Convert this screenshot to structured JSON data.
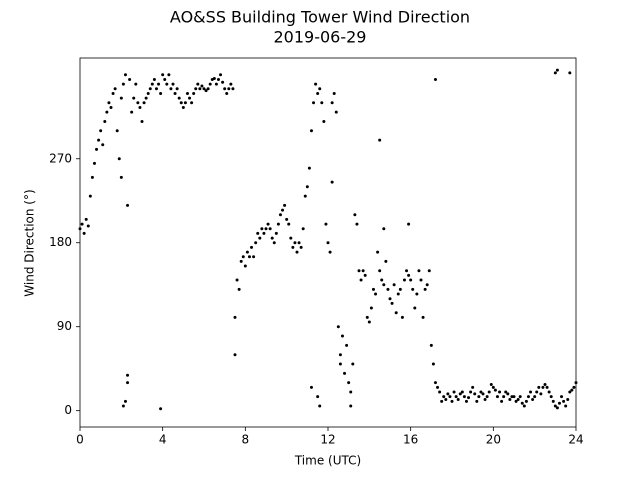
{
  "chart_data": {
    "type": "scatter",
    "title": "AO&SS Building Tower Wind Direction",
    "subtitle": "2019-06-29",
    "x_label": "Time (UTC)",
    "y_label": "Wind Direction (°)",
    "color": "#000000",
    "xlim": [
      0,
      24
    ],
    "xticks": [
      0,
      4,
      8,
      12,
      16,
      20,
      24
    ],
    "ylim": [
      -17.5,
      378
    ],
    "yticks": [
      0,
      90,
      180,
      270
    ],
    "grid": false,
    "x": [
      0,
      0.1,
      0.2,
      0.3,
      0.4,
      0.5,
      0.6,
      0.7,
      0.8,
      0.9,
      1,
      1.1,
      1.2,
      1.3,
      1.4,
      1.5,
      1.6,
      1.7,
      1.8,
      1.9,
      2,
      2.1,
      2.2,
      2.3,
      2.4,
      2.5,
      2.6,
      2.7,
      2.8,
      2.9,
      3,
      3.1,
      3.2,
      3.3,
      3.4,
      3.5,
      3.6,
      3.7,
      3.8,
      3.9,
      4,
      4.1,
      4.2,
      4.3,
      4.4,
      4.5,
      4.6,
      4.7,
      4.8,
      4.9,
      5,
      5.1,
      5.2,
      5.3,
      5.4,
      5.5,
      5.6,
      5.7,
      5.8,
      5.9,
      6,
      6.1,
      6.2,
      6.3,
      6.4,
      6.5,
      6.6,
      6.7,
      6.8,
      6.9,
      7,
      7.1,
      7.2,
      7.3,
      7.4,
      7.5,
      7.6,
      7.7,
      7.8,
      7.9,
      8,
      8.1,
      8.2,
      8.3,
      8.4,
      8.5,
      8.6,
      8.7,
      8.8,
      8.9,
      9,
      9.1,
      9.2,
      9.3,
      9.4,
      9.5,
      9.6,
      9.7,
      9.8,
      9.9,
      10,
      10.1,
      10.2,
      10.3,
      10.4,
      10.5,
      10.6,
      10.7,
      10.8,
      10.9,
      11,
      11.1,
      11.2,
      11.3,
      11.4,
      11.5,
      11.6,
      11.7,
      11.8,
      11.9,
      12,
      12.1,
      12.2,
      12.3,
      12.4,
      12.5,
      12.6,
      12.7,
      12.8,
      12.9,
      13,
      13.1,
      13.2,
      13.3,
      13.4,
      13.5,
      13.6,
      13.7,
      13.8,
      13.9,
      14,
      14.1,
      14.2,
      14.3,
      14.4,
      14.5,
      14.6,
      14.7,
      14.8,
      14.9,
      15,
      15.1,
      15.2,
      15.3,
      15.4,
      15.5,
      15.6,
      15.7,
      15.8,
      15.9,
      16,
      16.1,
      16.2,
      16.3,
      16.4,
      16.5,
      16.6,
      16.7,
      16.8,
      16.9,
      17,
      17.1,
      17.2,
      17.3,
      17.4,
      17.5,
      17.6,
      17.7,
      17.8,
      17.9,
      18,
      18.1,
      18.2,
      18.3,
      18.4,
      18.5,
      18.6,
      18.7,
      18.8,
      18.9,
      19,
      19.1,
      19.2,
      19.3,
      19.4,
      19.5,
      19.6,
      19.7,
      19.8,
      19.9,
      20,
      20.1,
      20.2,
      20.3,
      20.4,
      20.5,
      20.6,
      20.7,
      20.8,
      20.9,
      21,
      21.1,
      21.2,
      21.3,
      21.4,
      21.5,
      21.6,
      21.7,
      21.8,
      21.9,
      22,
      22.1,
      22.2,
      22.3,
      22.4,
      22.5,
      22.6,
      22.7,
      22.8,
      22.9,
      23,
      23.1,
      23.2,
      23.3,
      23.4,
      23.5,
      23.6,
      23.7,
      23.8,
      23.9,
      24,
      2.2,
      2.3,
      2.3,
      3.9,
      7.5,
      11.2,
      11.5,
      11.6,
      12.6,
      13.1,
      14.5,
      17.2,
      23,
      23.1,
      23.7,
      2,
      2.1,
      12.2,
      15.9,
      14.7
    ],
    "values": [
      195,
      200,
      190,
      205,
      198,
      230,
      250,
      265,
      280,
      290,
      300,
      285,
      310,
      320,
      330,
      325,
      340,
      345,
      300,
      270,
      335,
      350,
      360,
      220,
      355,
      320,
      335,
      350,
      330,
      325,
      310,
      330,
      335,
      340,
      345,
      350,
      355,
      345,
      350,
      340,
      360,
      355,
      350,
      360,
      345,
      350,
      340,
      345,
      335,
      330,
      325,
      330,
      340,
      335,
      330,
      340,
      345,
      350,
      345,
      348,
      345,
      343,
      345,
      350,
      355,
      356,
      350,
      355,
      360,
      352,
      345,
      340,
      345,
      350,
      345,
      100,
      140,
      130,
      160,
      165,
      155,
      170,
      165,
      175,
      165,
      180,
      190,
      185,
      195,
      190,
      195,
      200,
      195,
      185,
      180,
      190,
      200,
      210,
      215,
      220,
      205,
      200,
      185,
      175,
      180,
      170,
      180,
      175,
      195,
      230,
      240,
      260,
      300,
      330,
      350,
      340,
      345,
      330,
      310,
      200,
      180,
      170,
      330,
      340,
      320,
      90,
      60,
      80,
      40,
      70,
      30,
      20,
      50,
      210,
      200,
      150,
      140,
      150,
      145,
      100,
      95,
      110,
      130,
      125,
      170,
      150,
      140,
      135,
      160,
      130,
      120,
      115,
      135,
      105,
      125,
      130,
      100,
      140,
      150,
      145,
      140,
      130,
      110,
      125,
      150,
      140,
      100,
      130,
      135,
      150,
      70,
      50,
      30,
      25,
      20,
      10,
      15,
      12,
      18,
      15,
      10,
      20,
      15,
      12,
      18,
      20,
      15,
      10,
      14,
      20,
      25,
      18,
      10,
      15,
      20,
      18,
      12,
      15,
      20,
      28,
      25,
      22,
      15,
      20,
      10,
      15,
      20,
      18,
      12,
      15,
      15,
      10,
      12,
      15,
      8,
      5,
      10,
      15,
      20,
      12,
      15,
      20,
      25,
      18,
      25,
      28,
      25,
      20,
      15,
      10,
      5,
      3,
      8,
      15,
      10,
      5,
      12,
      20,
      22,
      25,
      30,
      10,
      30,
      38,
      2,
      60,
      25,
      15,
      5,
      50,
      5,
      290,
      355,
      362,
      365,
      362,
      250,
      5,
      245,
      200,
      195
    ]
  }
}
